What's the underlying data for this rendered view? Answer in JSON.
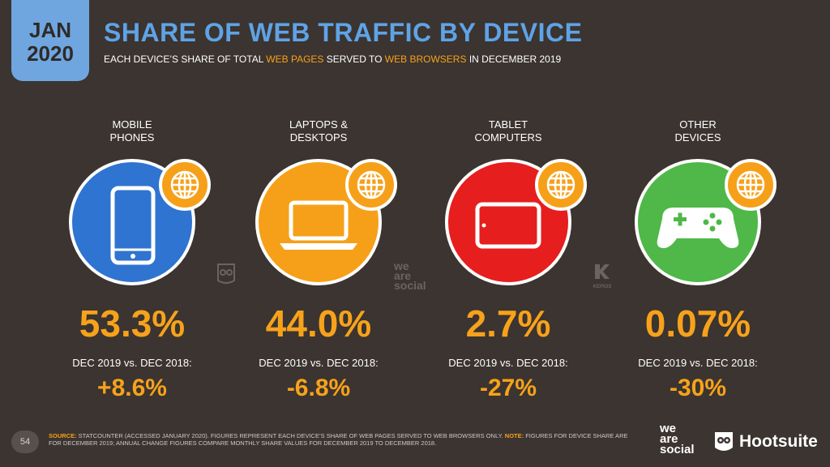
{
  "header": {
    "date_month": "JAN",
    "date_year": "2020",
    "title": "SHARE OF WEB TRAFFIC BY DEVICE",
    "subtitle_part1": "EACH DEVICE’S SHARE OF TOTAL ",
    "subtitle_hl1": "WEB PAGES",
    "subtitle_part2": " SERVED TO ",
    "subtitle_hl2": "WEB BROWSERS",
    "subtitle_part3": " IN DECEMBER 2019"
  },
  "devices": [
    {
      "label": "MOBILE\nPHONES",
      "value": "53.3%",
      "cmp_label": "DEC 2019 vs. DEC 2018:",
      "change": "+8.6%",
      "color": "#2f74d0",
      "icon": "smartphone-icon"
    },
    {
      "label": "LAPTOPS &\nDESKTOPS",
      "value": "44.0%",
      "cmp_label": "DEC 2019 vs. DEC 2018:",
      "change": "-6.8%",
      "color": "#f6a019",
      "icon": "laptop-icon"
    },
    {
      "label": "TABLET\nCOMPUTERS",
      "value": "2.7%",
      "cmp_label": "DEC 2019 vs. DEC 2018:",
      "change": "-27%",
      "color": "#e61e1e",
      "icon": "tablet-icon"
    },
    {
      "label": "OTHER\nDEVICES",
      "value": "0.07%",
      "cmp_label": "DEC 2019 vs. DEC 2018:",
      "change": "-30%",
      "color": "#4fb848",
      "icon": "gamepad-icon"
    }
  ],
  "watermarks": {
    "we_are_social": "we\nare\nsocial",
    "kepios": "KEPIOS"
  },
  "footer": {
    "page_number": "54",
    "source_label": "SOURCE:",
    "source_text": " STATCOUNTER (ACCESSED JANUARY 2020). FIGURES REPRESENT EACH DEVICE’S SHARE OF WEB PAGES SERVED TO WEB BROWSERS ONLY. ",
    "note_label": "NOTE:",
    "note_text": " FIGURES FOR DEVICE SHARE ARE FOR DECEMBER 2019; ANNUAL CHANGE FIGURES COMPARE MONTHLY SHARE VALUES FOR DECEMBER 2019 TO DECEMBER 2018.",
    "brand_we": "we",
    "brand_are": "are",
    "brand_social": "social",
    "brand_hootsuite": "Hootsuite"
  }
}
